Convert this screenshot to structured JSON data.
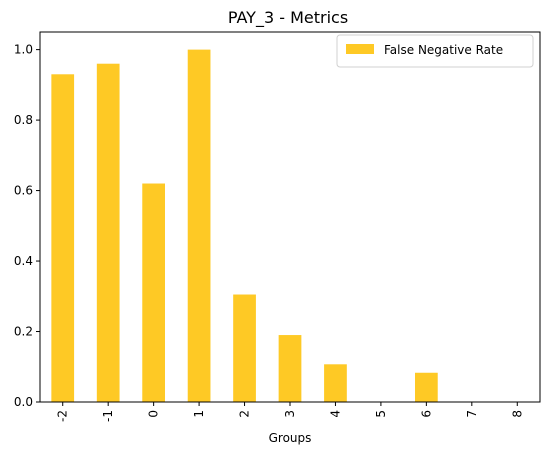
{
  "chart_data": {
    "type": "bar",
    "title": "PAY_3 - Metrics",
    "xlabel": "Groups",
    "ylabel": "",
    "categories": [
      "-2",
      "-1",
      "0",
      "1",
      "2",
      "3",
      "4",
      "5",
      "6",
      "7",
      "8"
    ],
    "series": [
      {
        "name": "False Negative Rate",
        "values": [
          0.93,
          0.96,
          0.62,
          1.0,
          0.305,
          0.19,
          0.107,
          0.0,
          0.083,
          0.0,
          0.0
        ],
        "color": "#fec925"
      }
    ],
    "ylim": [
      0,
      1.05
    ],
    "yticks": [
      0.0,
      0.2,
      0.4,
      0.6,
      0.8,
      1.0
    ],
    "ytick_labels": [
      "0.0",
      "0.2",
      "0.4",
      "0.6",
      "0.8",
      "1.0"
    ],
    "xtick_rotation": 90,
    "grid": false,
    "legend": "top-right"
  }
}
